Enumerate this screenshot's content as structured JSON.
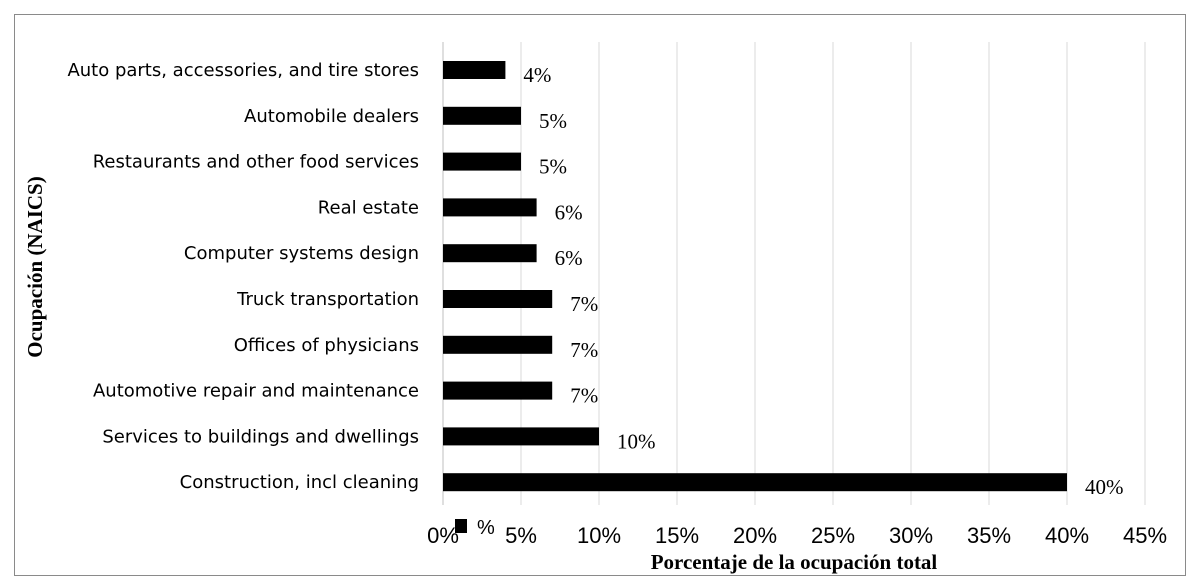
{
  "chart_data": {
    "type": "bar",
    "orientation": "horizontal",
    "categories": [
      "Auto parts, accessories, and tire stores",
      "Automobile dealers",
      "Restaurants and other food services",
      "Real estate",
      "Computer systems design",
      "Truck transportation",
      "Offices of physicians",
      "Automotive repair and maintenance",
      "Services to buildings and dwellings",
      "Construction, incl cleaning"
    ],
    "values": [
      4,
      5,
      5,
      6,
      6,
      7,
      7,
      7,
      10,
      40
    ],
    "value_labels": [
      "4%",
      "5%",
      "5%",
      "6%",
      "6%",
      "7%",
      "7%",
      "7%",
      "10%",
      "40%"
    ],
    "xlim": [
      0,
      45
    ],
    "xticks": [
      0,
      5,
      10,
      15,
      20,
      25,
      30,
      35,
      40,
      45
    ],
    "xtick_labels": [
      "0%",
      "5%",
      "10%",
      "15%",
      "20%",
      "25%",
      "30%",
      "35%",
      "40%",
      "45%"
    ],
    "xlabel": "Porcentaje de la ocupación total",
    "ylabel": "Ocupación (NAICS)",
    "grid": "vertical",
    "legend": {
      "position": "bottom-left",
      "entries": [
        "%"
      ]
    },
    "colors": {
      "bar": "#000000",
      "grid": "#d9d9d9",
      "frame": "#8a8a8a"
    }
  }
}
